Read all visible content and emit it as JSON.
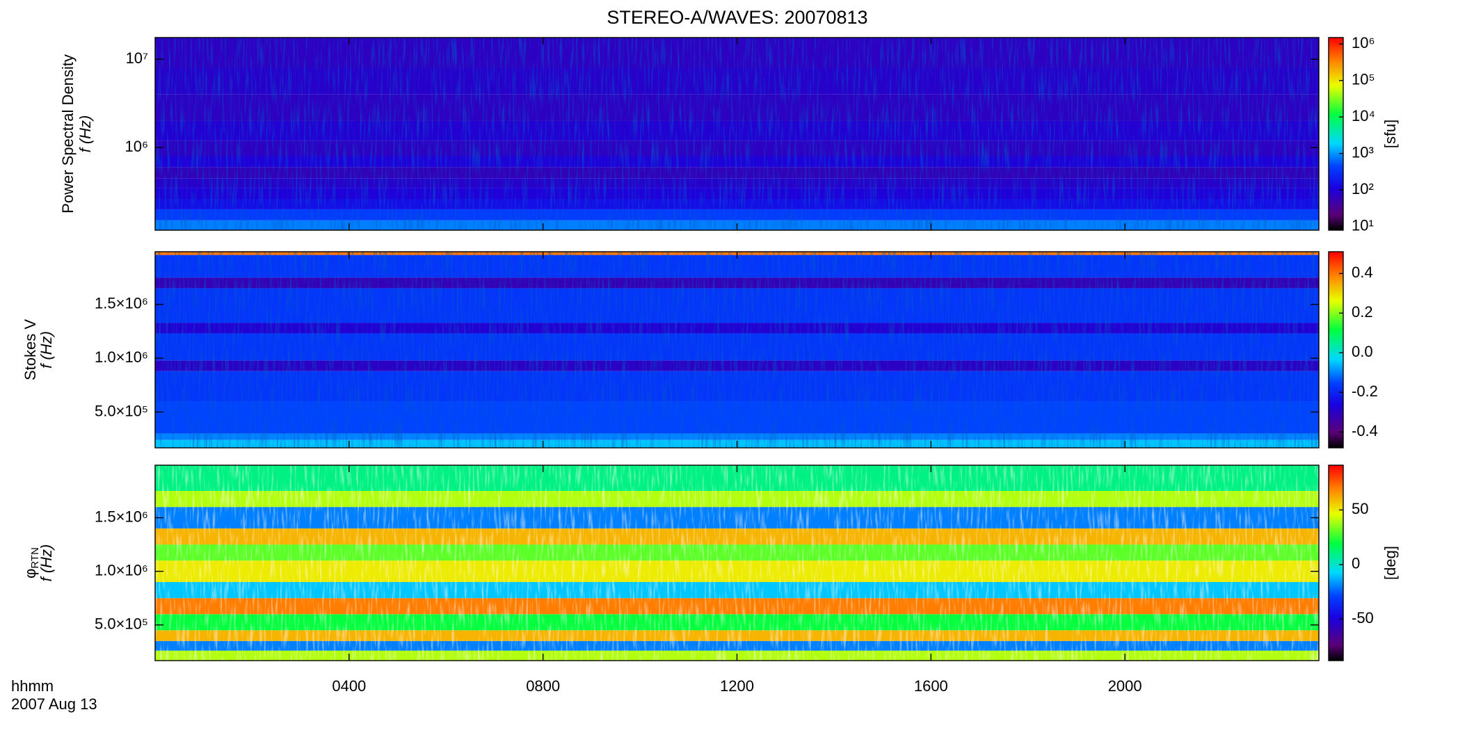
{
  "chart_data": [
    {
      "type": "heatmap",
      "title": "STEREO-A/WAVES: 20070813",
      "ylabel": "Power Spectral Density",
      "ylabel2": "f (Hz)",
      "ylog": true,
      "xlim": [
        0,
        24
      ],
      "xticks": [
        4,
        8,
        12,
        16,
        20
      ],
      "ylim": [
        116000,
        17600000
      ],
      "yticks": [
        {
          "value": 1000000,
          "label": "10⁶"
        },
        {
          "value": 10000000,
          "label": "10⁷"
        }
      ],
      "bands": [
        116000,
        150000,
        200000,
        260000,
        350000,
        450000,
        600000,
        800000,
        1200000,
        2000000,
        4000000,
        8000000,
        17600000
      ],
      "values": [
        800,
        400,
        150,
        100,
        80,
        60,
        100,
        70,
        90,
        70,
        80,
        70
      ],
      "colorbar": {
        "label": "[sfu]",
        "log": true,
        "lim": [
          7.9,
          1500000
        ],
        "ticks": [
          {
            "value": 10,
            "label": "10¹"
          },
          {
            "value": 100,
            "label": "10²"
          },
          {
            "value": 1000,
            "label": "10³"
          },
          {
            "value": 10000,
            "label": "10⁴"
          },
          {
            "value": 100000,
            "label": "10⁵"
          },
          {
            "value": 1000000,
            "label": "10⁶"
          }
        ]
      }
    },
    {
      "type": "heatmap",
      "ylabel": "Stokes V",
      "ylabel2": "f (Hz)",
      "ylog": false,
      "xlim": [
        0,
        24
      ],
      "xticks": [
        4,
        8,
        12,
        16,
        20
      ],
      "ylim": [
        167000,
        1990000
      ],
      "yticks": [
        {
          "value": 500000,
          "label": "5.0×10⁵"
        },
        {
          "value": 1000000,
          "label": "1.0×10⁶"
        },
        {
          "value": 1500000,
          "label": "1.5×10⁶"
        }
      ],
      "bands": [
        167000,
        240000,
        300000,
        600000,
        880000,
        980000,
        1230000,
        1330000,
        1650000,
        1750000,
        1960000,
        1990000
      ],
      "values": [
        -0.05,
        -0.1,
        -0.15,
        -0.17,
        -0.3,
        -0.17,
        -0.28,
        -0.17,
        -0.32,
        -0.17,
        0.4
      ],
      "colorbar": {
        "log": false,
        "lim": [
          -0.48,
          0.51
        ],
        "ticks": [
          -0.4,
          -0.2,
          {
            "value": 0,
            "label": "0.0"
          },
          0.2,
          0.4
        ]
      }
    },
    {
      "type": "heatmap",
      "ylabel": "φ",
      "ylabel_sub": "RTN",
      "ylabel2": "f (Hz)",
      "ylog": false,
      "xlabel": "hhmm",
      "xsublabel": "2007 Aug 13",
      "xlim": [
        0,
        24
      ],
      "xticks": [
        {
          "value": 4,
          "label": "0400"
        },
        {
          "value": 8,
          "label": "0800"
        },
        {
          "value": 12,
          "label": "1200"
        },
        {
          "value": 16,
          "label": "1600"
        },
        {
          "value": 20,
          "label": "2000"
        }
      ],
      "ylim": [
        167000,
        1990000
      ],
      "yticks": [
        {
          "value": 500000,
          "label": "5.0×10⁵"
        },
        {
          "value": 1000000,
          "label": "1.0×10⁶"
        },
        {
          "value": 1500000,
          "label": "1.5×10⁶"
        }
      ],
      "bands": [
        167000,
        260000,
        350000,
        450000,
        600000,
        750000,
        900000,
        1100000,
        1250000,
        1400000,
        1600000,
        1750000,
        1990000
      ],
      "values": [
        40,
        -20,
        60,
        20,
        70,
        -10,
        50,
        30,
        60,
        -20,
        40,
        10
      ],
      "colorbar": {
        "label": "[deg]",
        "log": false,
        "lim": [
          -88,
          91
        ],
        "ticks": [
          -50,
          0,
          50
        ]
      }
    }
  ]
}
